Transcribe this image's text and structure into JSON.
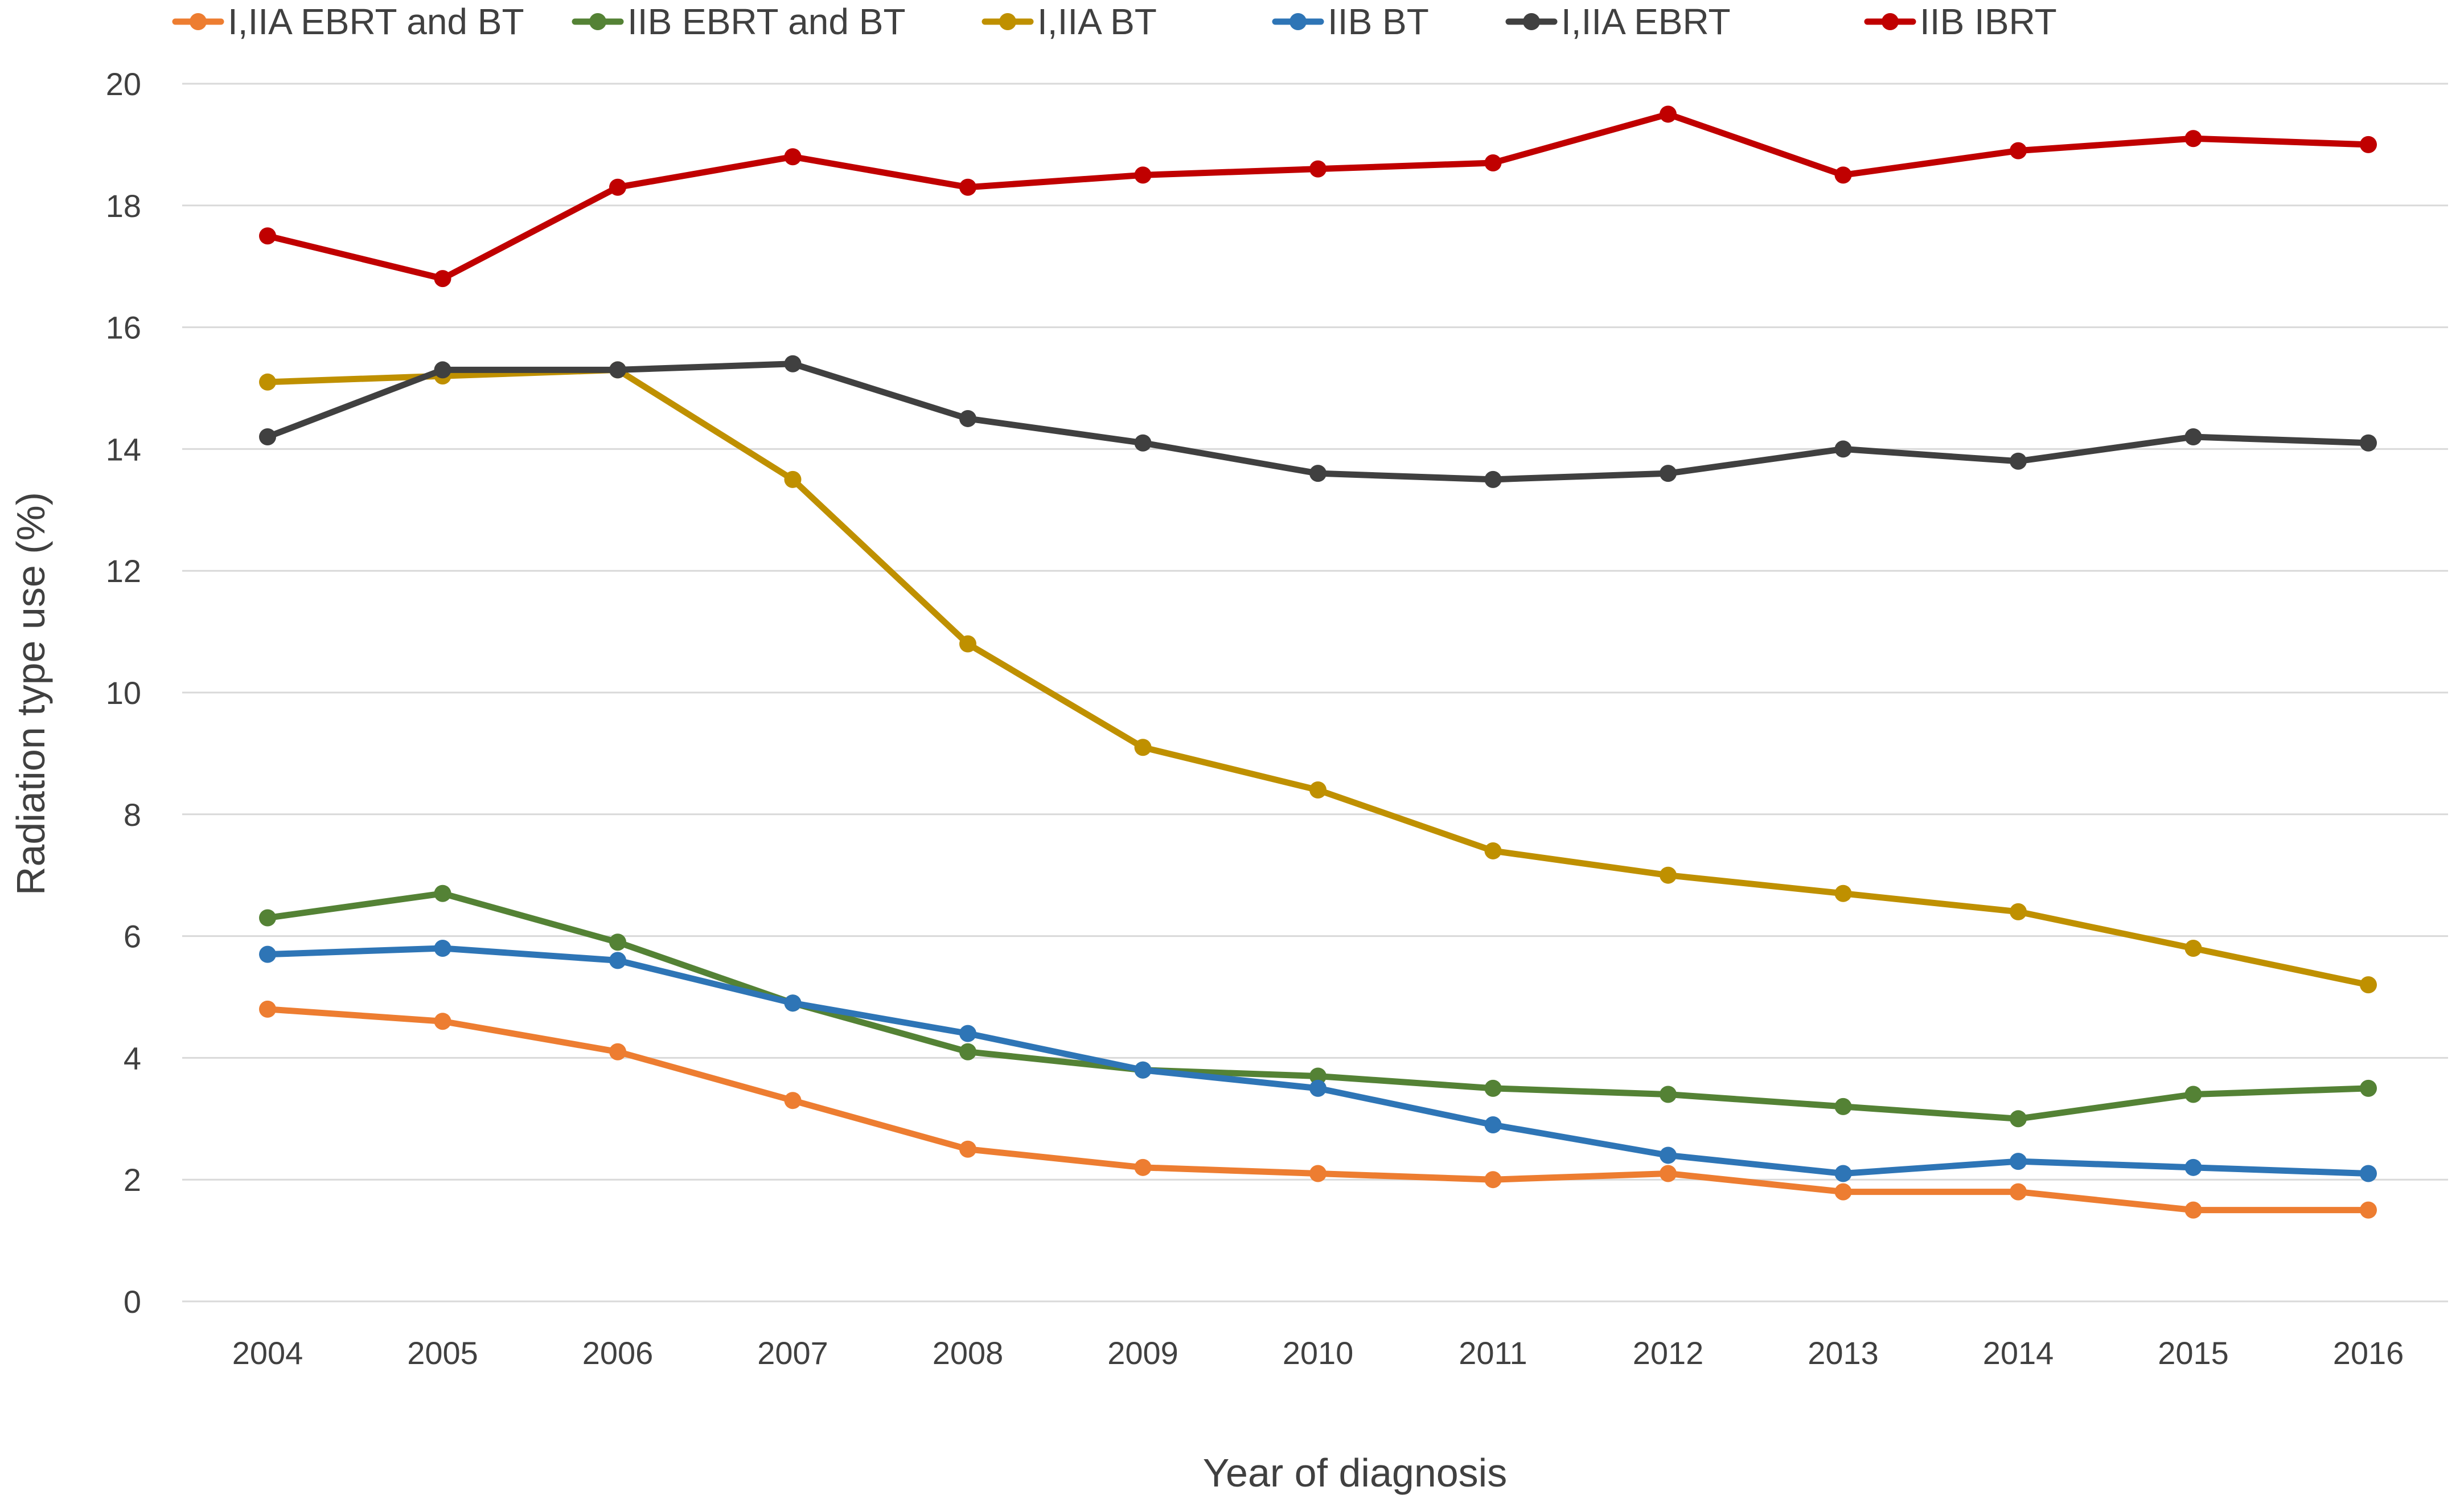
{
  "chart_data": {
    "type": "line",
    "title": "",
    "xlabel": "Year of diagnosis",
    "ylabel": "Radiation type use (%)",
    "ylim": [
      0,
      20
    ],
    "yticks": [
      0,
      2,
      4,
      6,
      8,
      10,
      12,
      14,
      16,
      18,
      20
    ],
    "grid": true,
    "legend_position": "top",
    "categories": [
      "2004",
      "2005",
      "2006",
      "2007",
      "2008",
      "2009",
      "2010",
      "2011",
      "2012",
      "2013",
      "2014",
      "2015",
      "2016"
    ],
    "series": [
      {
        "name": "I,IIA EBRT and BT",
        "color": "#ed7d31",
        "values": [
          4.8,
          4.6,
          4.1,
          3.3,
          2.5,
          2.2,
          2.1,
          2.0,
          2.1,
          1.8,
          1.8,
          1.5,
          1.5
        ]
      },
      {
        "name": "IIB EBRT and BT",
        "color": "#548235",
        "values": [
          6.3,
          6.7,
          5.9,
          4.9,
          4.1,
          3.8,
          3.7,
          3.5,
          3.4,
          3.2,
          3.0,
          3.4,
          3.5
        ]
      },
      {
        "name": "I,IIA BT",
        "color": "#bf9000",
        "values": [
          15.1,
          15.2,
          15.3,
          13.5,
          10.8,
          9.1,
          8.4,
          7.4,
          7.0,
          6.7,
          6.4,
          5.8,
          5.2
        ]
      },
      {
        "name": "IIB BT",
        "color": "#2e75b6",
        "values": [
          5.7,
          5.8,
          5.6,
          4.9,
          4.4,
          3.8,
          3.5,
          2.9,
          2.4,
          2.1,
          2.3,
          2.2,
          2.1
        ]
      },
      {
        "name": "I,IIA EBRT",
        "color": "#404040",
        "values": [
          14.2,
          15.3,
          15.3,
          15.4,
          14.5,
          14.1,
          13.6,
          13.5,
          13.6,
          14.0,
          13.8,
          14.2,
          14.1
        ]
      },
      {
        "name": "IIB IBRT",
        "color": "#c00000",
        "values": [
          17.5,
          16.8,
          18.3,
          18.8,
          18.3,
          18.5,
          18.6,
          18.7,
          19.5,
          18.5,
          18.9,
          19.1,
          19.0
        ]
      }
    ]
  }
}
